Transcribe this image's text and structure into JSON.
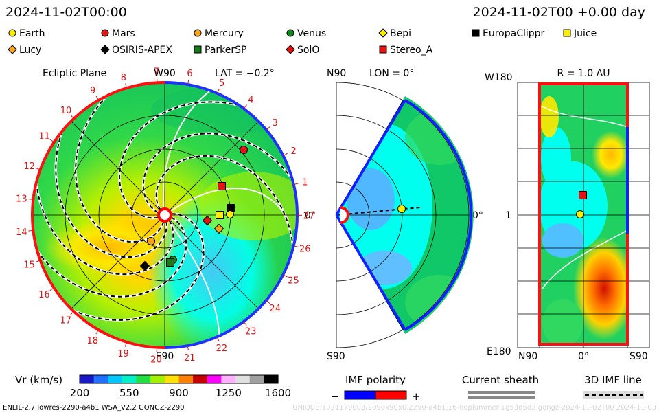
{
  "header": {
    "datetime": "2024-11-02T00:00",
    "elapsed": "2024-11-02T00 +0.00 day"
  },
  "legend": [
    {
      "name": "Earth",
      "marker": "circle",
      "color": "#ffee00"
    },
    {
      "name": "Mars",
      "marker": "circle",
      "color": "#e41414"
    },
    {
      "name": "Mercury",
      "marker": "circle",
      "color": "#f7a21b"
    },
    {
      "name": "Venus",
      "marker": "circle",
      "color": "#0f8a1e"
    },
    {
      "name": "Bepi",
      "marker": "diamond",
      "color": "#ffee00"
    },
    {
      "name": "EuropaClippr",
      "marker": "square",
      "color": "#000000"
    },
    {
      "name": "Juice",
      "marker": "square",
      "color": "#ffee00"
    },
    {
      "name": "Lucy",
      "marker": "diamond",
      "color": "#f7a21b"
    },
    {
      "name": "OSIRIS-APEX",
      "marker": "diamond",
      "color": "#000000"
    },
    {
      "name": "ParkerSP",
      "marker": "square",
      "color": "#1a7a1a"
    },
    {
      "name": "SolO",
      "marker": "diamond",
      "color": "#e41414"
    },
    {
      "name": "Stereo_A",
      "marker": "square",
      "color": "#e41414"
    }
  ],
  "panels": {
    "ecliptic": {
      "title": "Ecliptic Plane",
      "w90": "W90",
      "e90": "E90",
      "lat": "LAT = −0.2°",
      "zero": "0°",
      "carrington_ticks": [
        "1",
        "2",
        "3",
        "4",
        "5",
        "6",
        "7",
        "8",
        "9",
        "10",
        "11",
        "12",
        "13",
        "14",
        "15",
        "16",
        "17",
        "18",
        "19",
        "20",
        "21",
        "22",
        "23",
        "24",
        "25",
        "26",
        "27"
      ]
    },
    "meridional": {
      "n90": "N90",
      "s90": "S90",
      "lon": "LON = 0°",
      "zero": "0°"
    },
    "radius_map": {
      "title": "R = 1.0 AU",
      "w180": "W180",
      "e180": "E180",
      "one": "1",
      "n90": "N90",
      "zero": "0°",
      "s90": "S90"
    }
  },
  "colorbar": {
    "label": "Vr (km/s)",
    "ticks": [
      "200",
      "550",
      "900",
      "1250",
      "1600"
    ],
    "colors": [
      "#1818c8",
      "#2070ff",
      "#00c8ff",
      "#00f0c8",
      "#20e040",
      "#a0f000",
      "#ffe000",
      "#ff8000",
      "#c80000",
      "#ff00ff",
      "#ffb0ff",
      "#e0e0e0",
      "#a0a0a0",
      "#000000"
    ]
  },
  "imf": {
    "label": "IMF polarity",
    "minus": "−",
    "plus": "+",
    "neg_color": "#0000ff",
    "pos_color": "#ff0000"
  },
  "sheath": {
    "label": "Current sheath"
  },
  "imf3d": {
    "label": "3D IMF line"
  },
  "footer": {
    "left": "ENLIL-2.7 lowres-2290-a4b1 WSA_V2.2 GONGZ-2290",
    "right": "UNIQUE:1031179003/2090x90x0.2290-a4b1.16-noplummer-1g53d5d2.gongz-2024-11-02T00 2024-11-03"
  }
}
